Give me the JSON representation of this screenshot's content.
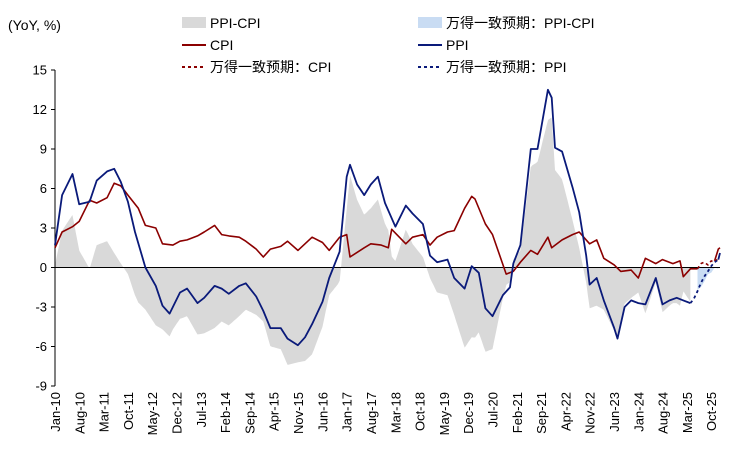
{
  "chart_data": {
    "type": "line",
    "unit_label": "(YoY, %)",
    "y_ticks": [
      -9,
      -6,
      -3,
      0,
      3,
      6,
      9,
      12,
      15
    ],
    "ylim": [
      -9,
      15
    ],
    "x_tick_labels": [
      "Jan-10",
      "Aug-10",
      "Mar-11",
      "Oct-11",
      "May-12",
      "Dec-12",
      "Jul-13",
      "Feb-14",
      "Sep-14",
      "Apr-15",
      "Nov-15",
      "Jun-16",
      "Jan-17",
      "Aug-17",
      "Mar-18",
      "Oct-18",
      "May-19",
      "Dec-19",
      "Jul-20",
      "Feb-21",
      "Sep-21",
      "Apr-22",
      "Nov-22",
      "Jun-23",
      "Jan-24",
      "Aug-24",
      "Mar-25",
      "Oct-25"
    ],
    "legend": [
      {
        "label": "PPI-CPI",
        "kind": "area",
        "color": "#d9d9d9"
      },
      {
        "label": "万得一致预期：PPI-CPI",
        "kind": "area",
        "color": "#c9dcf3"
      },
      {
        "label": "CPI",
        "kind": "line",
        "color": "#8b0000"
      },
      {
        "label": "PPI",
        "kind": "line",
        "color": "#0a1a7a"
      },
      {
        "label": "万得一致预期：CPI",
        "kind": "dash",
        "color": "#8b0000"
      },
      {
        "label": "万得一致预期：PPI",
        "kind": "dash",
        "color": "#0a1a7a"
      }
    ],
    "colors": {
      "cpi": "#8b0000",
      "ppi": "#0a1a7a",
      "spread": "#d9d9d9",
      "forecast_spread": "#c9dcf3"
    },
    "cpi": [
      [
        2010.0,
        1.5
      ],
      [
        2010.17,
        2.7
      ],
      [
        2010.42,
        3.1
      ],
      [
        2010.58,
        3.5
      ],
      [
        2010.83,
        5.1
      ],
      [
        2011.0,
        4.9
      ],
      [
        2011.25,
        5.3
      ],
      [
        2011.42,
        6.4
      ],
      [
        2011.58,
        6.2
      ],
      [
        2011.75,
        5.5
      ],
      [
        2012.0,
        4.5
      ],
      [
        2012.17,
        3.2
      ],
      [
        2012.42,
        3.0
      ],
      [
        2012.58,
        1.8
      ],
      [
        2012.83,
        1.7
      ],
      [
        2013.0,
        2.0
      ],
      [
        2013.17,
        2.1
      ],
      [
        2013.42,
        2.4
      ],
      [
        2013.58,
        2.7
      ],
      [
        2013.83,
        3.2
      ],
      [
        2014.0,
        2.5
      ],
      [
        2014.17,
        2.4
      ],
      [
        2014.42,
        2.3
      ],
      [
        2014.58,
        2.0
      ],
      [
        2014.83,
        1.4
      ],
      [
        2015.0,
        0.8
      ],
      [
        2015.17,
        1.4
      ],
      [
        2015.42,
        1.6
      ],
      [
        2015.58,
        2.0
      ],
      [
        2015.83,
        1.3
      ],
      [
        2016.0,
        1.8
      ],
      [
        2016.17,
        2.3
      ],
      [
        2016.42,
        1.9
      ],
      [
        2016.58,
        1.3
      ],
      [
        2016.83,
        2.3
      ],
      [
        2017.0,
        2.5
      ],
      [
        2017.08,
        0.8
      ],
      [
        2017.42,
        1.5
      ],
      [
        2017.58,
        1.8
      ],
      [
        2017.83,
        1.7
      ],
      [
        2018.0,
        1.5
      ],
      [
        2018.08,
        2.9
      ],
      [
        2018.42,
        1.8
      ],
      [
        2018.58,
        2.3
      ],
      [
        2018.83,
        2.5
      ],
      [
        2019.0,
        1.7
      ],
      [
        2019.17,
        2.3
      ],
      [
        2019.42,
        2.7
      ],
      [
        2019.58,
        2.8
      ],
      [
        2019.83,
        4.5
      ],
      [
        2020.0,
        5.4
      ],
      [
        2020.08,
        5.2
      ],
      [
        2020.33,
        3.3
      ],
      [
        2020.5,
        2.5
      ],
      [
        2020.83,
        -0.5
      ],
      [
        2021.0,
        -0.3
      ],
      [
        2021.17,
        0.4
      ],
      [
        2021.42,
        1.3
      ],
      [
        2021.58,
        1.0
      ],
      [
        2021.83,
        2.3
      ],
      [
        2021.92,
        1.5
      ],
      [
        2022.17,
        2.1
      ],
      [
        2022.42,
        2.5
      ],
      [
        2022.58,
        2.7
      ],
      [
        2022.83,
        1.8
      ],
      [
        2023.0,
        2.1
      ],
      [
        2023.17,
        0.7
      ],
      [
        2023.42,
        0.2
      ],
      [
        2023.58,
        -0.3
      ],
      [
        2023.83,
        -0.2
      ],
      [
        2024.0,
        -0.8
      ],
      [
        2024.17,
        0.7
      ],
      [
        2024.42,
        0.3
      ],
      [
        2024.58,
        0.6
      ],
      [
        2024.83,
        0.3
      ],
      [
        2025.0,
        0.5
      ],
      [
        2025.08,
        -0.7
      ],
      [
        2025.25,
        -0.1
      ],
      [
        2025.42,
        -0.1
      ]
    ],
    "ppi": [
      [
        2010.0,
        1.7
      ],
      [
        2010.17,
        5.5
      ],
      [
        2010.42,
        7.1
      ],
      [
        2010.58,
        4.8
      ],
      [
        2010.83,
        5.0
      ],
      [
        2011.0,
        6.6
      ],
      [
        2011.25,
        7.3
      ],
      [
        2011.42,
        7.5
      ],
      [
        2011.58,
        6.5
      ],
      [
        2011.75,
        5.0
      ],
      [
        2011.92,
        2.7
      ],
      [
        2012.17,
        0.0
      ],
      [
        2012.42,
        -1.4
      ],
      [
        2012.58,
        -2.9
      ],
      [
        2012.75,
        -3.5
      ],
      [
        2013.0,
        -1.9
      ],
      [
        2013.17,
        -1.6
      ],
      [
        2013.42,
        -2.7
      ],
      [
        2013.58,
        -2.3
      ],
      [
        2013.83,
        -1.4
      ],
      [
        2014.0,
        -1.6
      ],
      [
        2014.17,
        -2.0
      ],
      [
        2014.42,
        -1.4
      ],
      [
        2014.58,
        -1.2
      ],
      [
        2014.83,
        -2.2
      ],
      [
        2015.0,
        -3.3
      ],
      [
        2015.17,
        -4.6
      ],
      [
        2015.42,
        -4.6
      ],
      [
        2015.58,
        -5.4
      ],
      [
        2015.83,
        -5.9
      ],
      [
        2016.0,
        -5.3
      ],
      [
        2016.17,
        -4.3
      ],
      [
        2016.42,
        -2.6
      ],
      [
        2016.58,
        -0.8
      ],
      [
        2016.83,
        1.2
      ],
      [
        2017.0,
        6.9
      ],
      [
        2017.08,
        7.8
      ],
      [
        2017.25,
        6.3
      ],
      [
        2017.42,
        5.5
      ],
      [
        2017.58,
        6.3
      ],
      [
        2017.75,
        6.9
      ],
      [
        2017.92,
        4.9
      ],
      [
        2018.17,
        3.1
      ],
      [
        2018.42,
        4.7
      ],
      [
        2018.58,
        4.1
      ],
      [
        2018.83,
        3.3
      ],
      [
        2019.0,
        0.9
      ],
      [
        2019.17,
        0.4
      ],
      [
        2019.42,
        0.6
      ],
      [
        2019.58,
        -0.8
      ],
      [
        2019.83,
        -1.6
      ],
      [
        2020.0,
        0.1
      ],
      [
        2020.17,
        -0.4
      ],
      [
        2020.33,
        -3.1
      ],
      [
        2020.5,
        -3.7
      ],
      [
        2020.75,
        -2.1
      ],
      [
        2020.92,
        -1.5
      ],
      [
        2021.0,
        0.3
      ],
      [
        2021.17,
        1.7
      ],
      [
        2021.42,
        9.0
      ],
      [
        2021.58,
        9.0
      ],
      [
        2021.83,
        13.5
      ],
      [
        2021.92,
        12.9
      ],
      [
        2022.0,
        9.1
      ],
      [
        2022.17,
        8.8
      ],
      [
        2022.42,
        6.1
      ],
      [
        2022.58,
        4.2
      ],
      [
        2022.75,
        0.9
      ],
      [
        2022.83,
        -1.3
      ],
      [
        2023.0,
        -0.8
      ],
      [
        2023.17,
        -2.5
      ],
      [
        2023.42,
        -4.6
      ],
      [
        2023.5,
        -5.4
      ],
      [
        2023.67,
        -3.0
      ],
      [
        2023.83,
        -2.5
      ],
      [
        2024.0,
        -2.7
      ],
      [
        2024.17,
        -2.8
      ],
      [
        2024.42,
        -0.8
      ],
      [
        2024.58,
        -2.8
      ],
      [
        2024.75,
        -2.5
      ],
      [
        2024.92,
        -2.3
      ],
      [
        2025.08,
        -2.5
      ],
      [
        2025.25,
        -2.7
      ]
    ],
    "cpi_forecast": [
      [
        2025.42,
        -0.1
      ],
      [
        2025.5,
        0.3
      ],
      [
        2025.58,
        0.4
      ],
      [
        2025.67,
        0.2
      ],
      [
        2025.75,
        0.5
      ],
      [
        2025.83,
        0.4
      ],
      [
        2025.92,
        0.7
      ]
    ],
    "ppi_forecast": [
      [
        2025.25,
        -2.7
      ],
      [
        2025.33,
        -2.4
      ],
      [
        2025.42,
        -1.8
      ],
      [
        2025.5,
        -1.2
      ],
      [
        2025.58,
        -0.7
      ],
      [
        2025.67,
        -0.3
      ],
      [
        2025.75,
        0.1
      ],
      [
        2025.83,
        0.4
      ],
      [
        2025.92,
        0.6
      ]
    ],
    "cpi_tail": [
      [
        2025.83,
        0.5
      ],
      [
        2025.92,
        1.4
      ],
      [
        2025.96,
        1.5
      ]
    ],
    "ppi_tail": [
      [
        2025.92,
        0.6
      ],
      [
        2025.96,
        1.1
      ]
    ]
  }
}
